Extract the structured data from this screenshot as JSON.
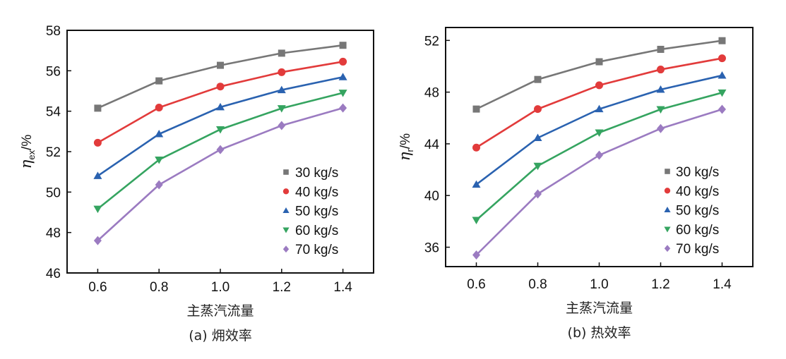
{
  "chart_data": [
    {
      "type": "line",
      "panel": "a",
      "title": "(a) 㶲效率",
      "xlabel": "主蒸汽流量",
      "ylabel_main": "η",
      "ylabel_sub": "ex",
      "ylabel_unit": "/%",
      "x": [
        0.6,
        0.8,
        1.0,
        1.2,
        1.4
      ],
      "xticks": [
        "0.6",
        "0.8",
        "1.0",
        "1.2",
        "1.4"
      ],
      "xlim": [
        0.5,
        1.5
      ],
      "yticks": [
        46,
        48,
        50,
        52,
        54,
        56,
        58
      ],
      "ylim": [
        46,
        58
      ],
      "grid": false,
      "legend_position": "lower-right",
      "series": [
        {
          "name": "30 kg/s",
          "marker": "square",
          "color": "#777777",
          "values": [
            54.15,
            55.5,
            56.27,
            56.87,
            57.26
          ]
        },
        {
          "name": "40 kg/s",
          "marker": "circle",
          "color": "#e23b3b",
          "values": [
            52.44,
            54.18,
            55.22,
            55.93,
            56.45
          ]
        },
        {
          "name": "50 kg/s",
          "marker": "triangle-up",
          "color": "#2a62b0",
          "values": [
            50.8,
            52.87,
            54.2,
            55.05,
            55.69
          ]
        },
        {
          "name": "60 kg/s",
          "marker": "triangle-down",
          "color": "#35a460",
          "values": [
            49.17,
            51.6,
            53.1,
            54.14,
            54.91
          ]
        },
        {
          "name": "70 kg/s",
          "marker": "diamond",
          "color": "#9b7bc1",
          "values": [
            47.6,
            50.36,
            52.1,
            53.29,
            54.16
          ]
        }
      ]
    },
    {
      "type": "line",
      "panel": "b",
      "title": "(b) 热效率",
      "xlabel": "主蒸汽流量",
      "ylabel_main": "η",
      "ylabel_sub": "r",
      "ylabel_unit": "/%",
      "x": [
        0.6,
        0.8,
        1.0,
        1.2,
        1.4
      ],
      "xticks": [
        "0.6",
        "0.8",
        "1.0",
        "1.2",
        "1.4"
      ],
      "xlim": [
        0.5,
        1.5
      ],
      "yticks": [
        36,
        40,
        44,
        48,
        52
      ],
      "ylim": [
        34.5,
        53
      ],
      "grid": false,
      "legend_position": "lower-right",
      "series": [
        {
          "name": "30 kg/s",
          "marker": "square",
          "color": "#777777",
          "values": [
            46.69,
            48.98,
            50.35,
            51.31,
            51.98
          ]
        },
        {
          "name": "40 kg/s",
          "marker": "circle",
          "color": "#e23b3b",
          "values": [
            43.71,
            46.69,
            48.53,
            49.75,
            50.62
          ]
        },
        {
          "name": "50 kg/s",
          "marker": "triangle-up",
          "color": "#2a62b0",
          "values": [
            40.85,
            44.46,
            46.69,
            48.2,
            49.29
          ]
        },
        {
          "name": "60 kg/s",
          "marker": "triangle-down",
          "color": "#35a460",
          "values": [
            38.1,
            42.29,
            44.87,
            46.67,
            47.96
          ]
        },
        {
          "name": "70 kg/s",
          "marker": "diamond",
          "color": "#9b7bc1",
          "values": [
            35.4,
            40.12,
            43.12,
            45.18,
            46.67
          ]
        }
      ]
    }
  ]
}
